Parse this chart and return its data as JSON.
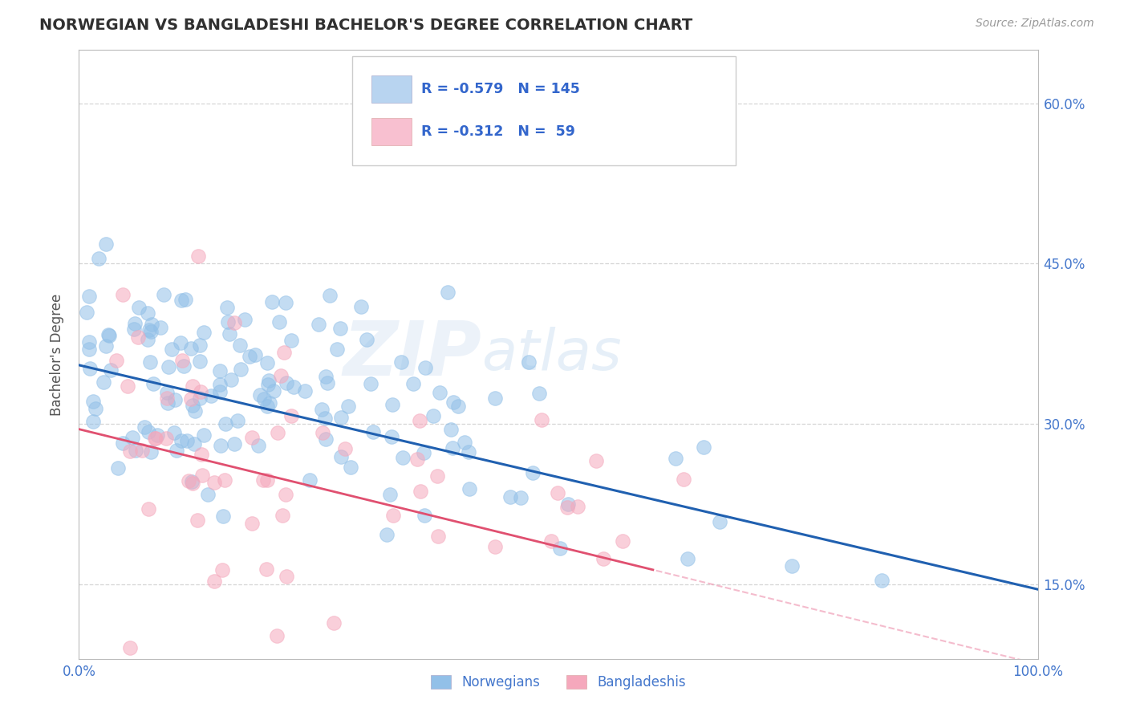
{
  "title": "NORWEGIAN VS BANGLADESHI BACHELOR'S DEGREE CORRELATION CHART",
  "source": "Source: ZipAtlas.com",
  "ylabel": "Bachelor's Degree",
  "xlim": [
    0.0,
    1.0
  ],
  "ylim": [
    0.08,
    0.65
  ],
  "xticks": [
    0.0,
    0.1,
    0.2,
    0.3,
    0.4,
    0.5,
    0.6,
    0.7,
    0.8,
    0.9,
    1.0
  ],
  "xticklabels": [
    "0.0%",
    "",
    "",
    "",
    "",
    "",
    "",
    "",
    "",
    "",
    "100.0%"
  ],
  "yticks": [
    0.15,
    0.3,
    0.45,
    0.6
  ],
  "yticklabels": [
    "15.0%",
    "30.0%",
    "45.0%",
    "60.0%"
  ],
  "norwegian_color": "#92c0e8",
  "bangladeshi_color": "#f5a8bc",
  "norwegian_line_color": "#2060b0",
  "bangladeshi_line_color": "#e05070",
  "bangladeshi_line_dashed_color": "#f0a0b8",
  "legend_box_color": "#b8d4f0",
  "legend_box_color2": "#f8c0d0",
  "R_norwegian": -0.579,
  "N_norwegian": 145,
  "R_bangladeshi": -0.312,
  "N_bangladeshi": 59,
  "watermark_zip": "ZIP",
  "watermark_atlas": "atlas",
  "background_color": "#ffffff",
  "grid_color": "#cccccc",
  "title_color": "#303030",
  "label_color": "#4477cc",
  "tick_color": "#4477cc",
  "ylabel_color": "#555555",
  "legend_text_color": "#3366cc"
}
